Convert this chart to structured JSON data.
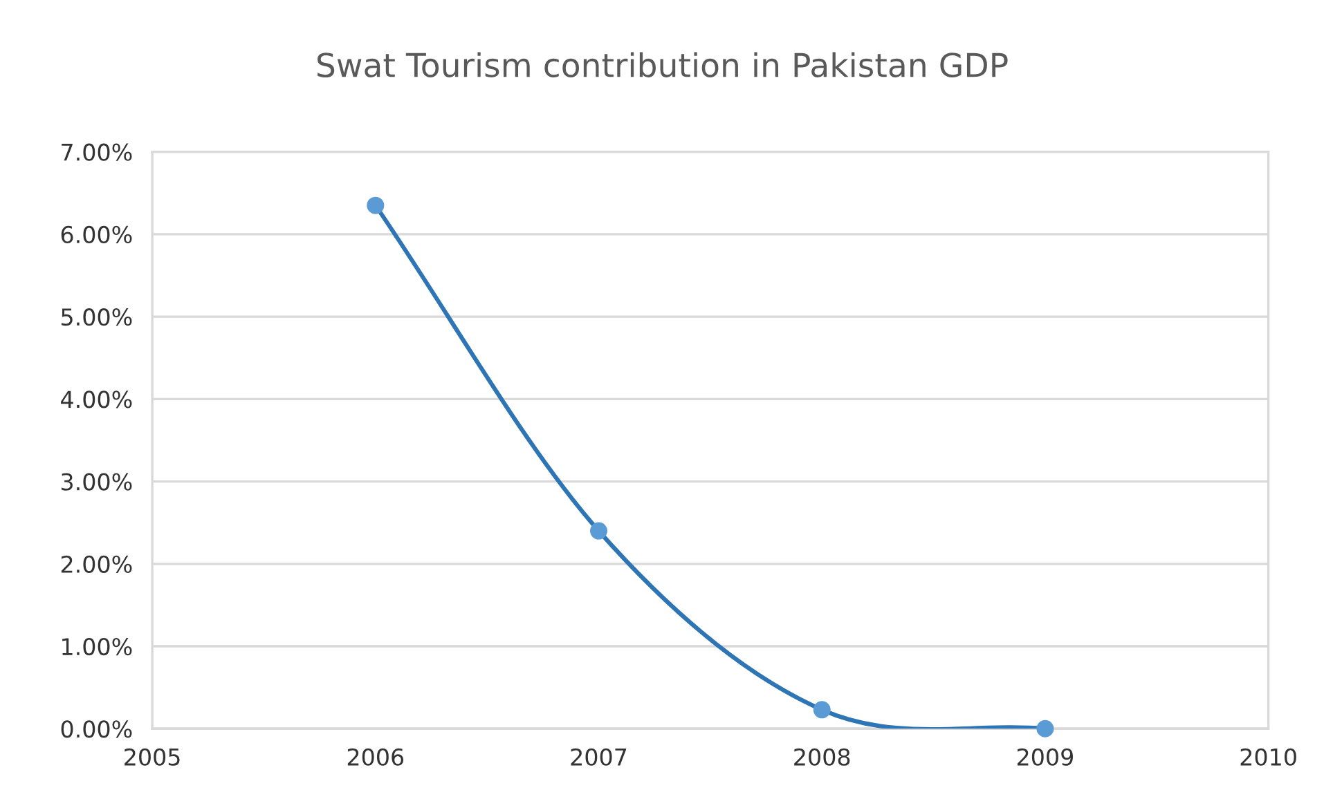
{
  "chart_data": {
    "type": "line",
    "title": "Swat Tourism contribution in Pakistan GDP",
    "x": [
      2006,
      2007,
      2008,
      2009
    ],
    "series": [
      {
        "color": "#2e75b6",
        "values": [
          6.35,
          2.4,
          0.23,
          0.0
        ]
      }
    ],
    "marker": "circle",
    "line_style": "solid",
    "xlim": [
      2005,
      2010
    ],
    "xticks": [
      2005,
      2006,
      2007,
      2008,
      2009,
      2010
    ],
    "ylim": [
      0,
      7
    ],
    "yticks": [
      {
        "value": 0,
        "label": "0.00%"
      },
      {
        "value": 1,
        "label": "1.00%"
      },
      {
        "value": 2,
        "label": "2.00%"
      },
      {
        "value": 3,
        "label": "3.00%"
      },
      {
        "value": 4,
        "label": "4.00%"
      },
      {
        "value": 5,
        "label": "5.00%"
      },
      {
        "value": 6,
        "label": "6.00%"
      },
      {
        "value": 7,
        "label": "7.00%"
      }
    ],
    "grid": "y",
    "legend": false
  }
}
